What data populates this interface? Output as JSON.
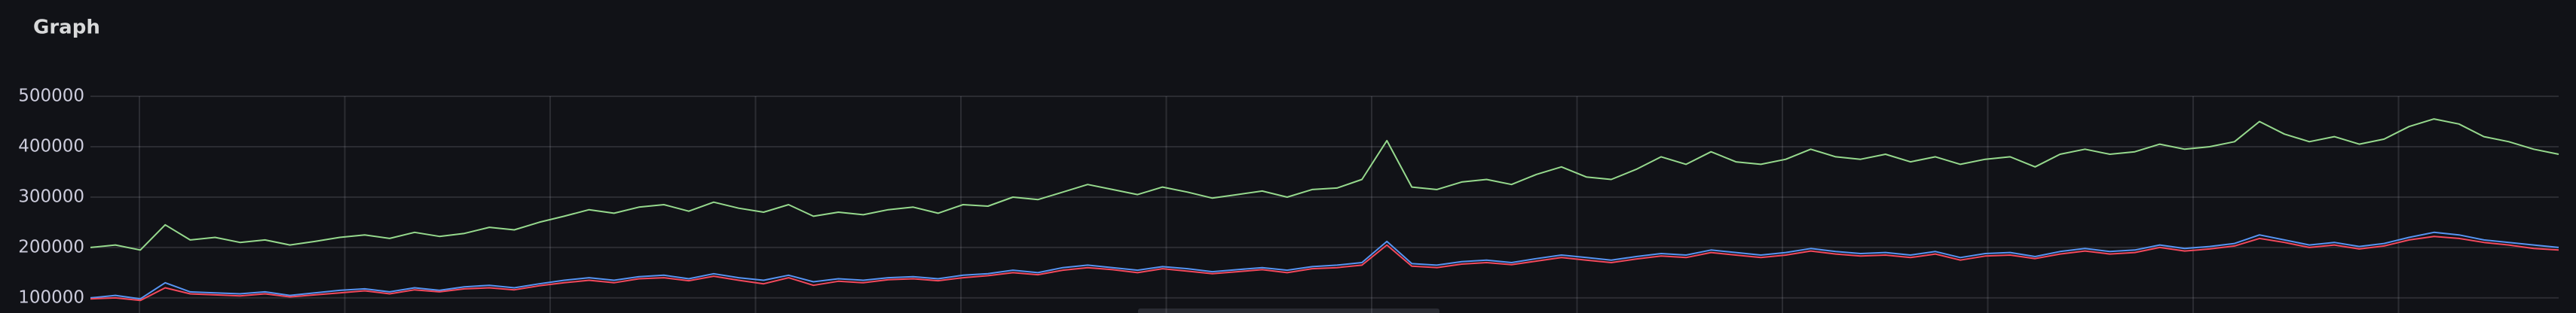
{
  "chart_data": {
    "type": "line",
    "title": "Graph",
    "ylim": [
      70000,
      500000
    ],
    "yticks": [
      100000,
      200000,
      300000,
      400000,
      500000
    ],
    "grid": true,
    "series": [
      {
        "color": "#96d98d",
        "values": [
          200000,
          205000,
          195000,
          245000,
          215000,
          220000,
          210000,
          215000,
          205000,
          212000,
          220000,
          225000,
          218000,
          230000,
          222000,
          228000,
          240000,
          235000,
          250000,
          262000,
          275000,
          268000,
          280000,
          285000,
          272000,
          290000,
          278000,
          270000,
          285000,
          262000,
          270000,
          265000,
          275000,
          280000,
          268000,
          285000,
          282000,
          300000,
          295000,
          310000,
          325000,
          315000,
          305000,
          320000,
          310000,
          298000,
          305000,
          312000,
          300000,
          315000,
          318000,
          335000,
          412000,
          320000,
          315000,
          330000,
          335000,
          325000,
          345000,
          360000,
          340000,
          335000,
          355000,
          380000,
          365000,
          390000,
          370000,
          365000,
          375000,
          395000,
          380000,
          375000,
          385000,
          370000,
          380000,
          365000,
          375000,
          380000,
          360000,
          385000,
          395000,
          385000,
          390000,
          405000,
          395000,
          400000,
          410000,
          450000,
          425000,
          410000,
          420000,
          405000,
          415000,
          440000,
          455000,
          445000,
          420000,
          410000,
          395000,
          385000
        ]
      },
      {
        "color": "#5794f2",
        "values": [
          100000,
          105000,
          98000,
          130000,
          112000,
          110000,
          108000,
          112000,
          105000,
          110000,
          115000,
          118000,
          112000,
          120000,
          115000,
          122000,
          125000,
          120000,
          128000,
          135000,
          140000,
          135000,
          142000,
          145000,
          138000,
          148000,
          140000,
          135000,
          145000,
          132000,
          138000,
          135000,
          140000,
          142000,
          138000,
          145000,
          148000,
          155000,
          150000,
          160000,
          165000,
          160000,
          155000,
          162000,
          158000,
          152000,
          156000,
          160000,
          155000,
          162000,
          165000,
          170000,
          212000,
          168000,
          165000,
          172000,
          175000,
          170000,
          178000,
          185000,
          180000,
          175000,
          182000,
          188000,
          185000,
          195000,
          190000,
          185000,
          190000,
          198000,
          192000,
          188000,
          190000,
          185000,
          192000,
          180000,
          188000,
          190000,
          182000,
          192000,
          198000,
          192000,
          195000,
          205000,
          198000,
          202000,
          208000,
          225000,
          215000,
          205000,
          210000,
          202000,
          208000,
          220000,
          230000,
          225000,
          215000,
          210000,
          205000,
          200000
        ]
      },
      {
        "color": "#f2495c",
        "values": [
          98000,
          100000,
          95000,
          120000,
          108000,
          106000,
          104000,
          108000,
          102000,
          106000,
          110000,
          114000,
          108000,
          116000,
          112000,
          118000,
          120000,
          116000,
          124000,
          130000,
          135000,
          130000,
          138000,
          140000,
          134000,
          143000,
          135000,
          128000,
          140000,
          125000,
          133000,
          130000,
          136000,
          138000,
          134000,
          140000,
          144000,
          150000,
          146000,
          155000,
          160000,
          156000,
          150000,
          158000,
          153000,
          148000,
          152000,
          156000,
          150000,
          158000,
          160000,
          165000,
          205000,
          163000,
          160000,
          167000,
          170000,
          166000,
          173000,
          180000,
          175000,
          170000,
          177000,
          183000,
          180000,
          190000,
          185000,
          180000,
          185000,
          193000,
          187000,
          183000,
          185000,
          180000,
          187000,
          175000,
          183000,
          185000,
          178000,
          187000,
          193000,
          187000,
          190000,
          200000,
          193000,
          197000,
          203000,
          218000,
          210000,
          200000,
          205000,
          197000,
          203000,
          215000,
          222000,
          218000,
          210000,
          205000,
          198000,
          195000
        ]
      }
    ]
  }
}
